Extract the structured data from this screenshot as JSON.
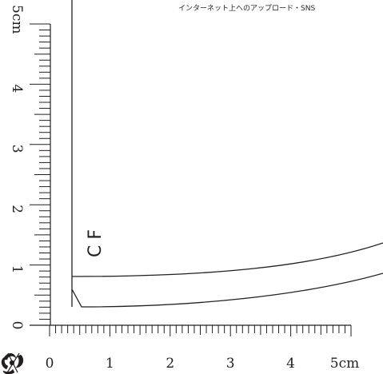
{
  "notice_text": "インターネット上へのアップロード・SNS",
  "piece_label": "C F",
  "ruler": {
    "unit": "cm",
    "vertical_labels": [
      "0",
      "1",
      "2",
      "3",
      "4",
      "5cm"
    ],
    "horizontal_labels": [
      "0",
      "1",
      "2",
      "3",
      "4",
      "5cm"
    ]
  },
  "colors": {
    "line": "#231f20",
    "background": "#ffffff"
  },
  "ornament_icon": "fleur-ornament-icon"
}
